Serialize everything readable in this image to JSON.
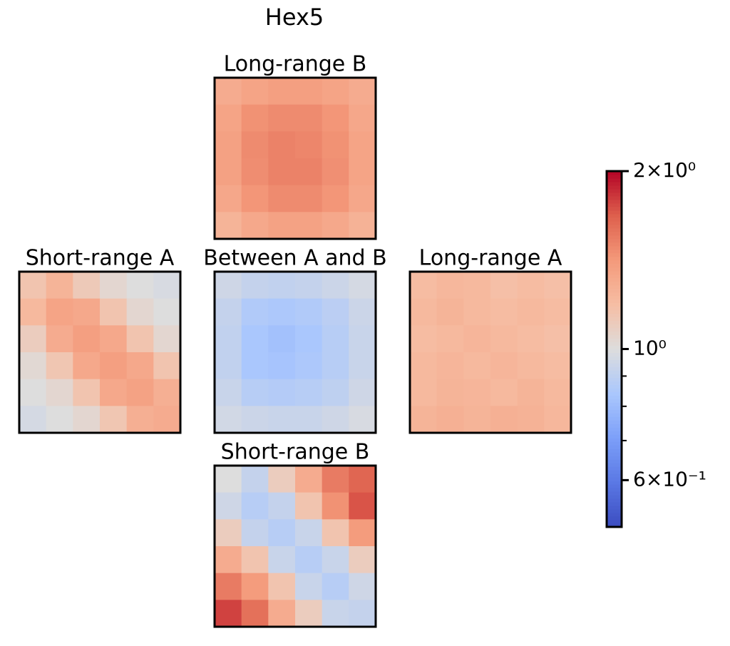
{
  "chart_data": {
    "type": "heatmap",
    "title": "Hex5",
    "colormap": "coolwarm",
    "log_scale": true,
    "clim": [
      0.5,
      2
    ],
    "cticks": [
      {
        "value": 2,
        "label": "2×10⁰"
      },
      {
        "value": 1,
        "label": "10⁰"
      },
      {
        "value": 0.6,
        "label": "6×10⁻¹"
      }
    ],
    "cminor_ticks": [
      0.9,
      0.8,
      0.7
    ],
    "panels": [
      {
        "title": "Long-range B",
        "values": [
          [
            1.3,
            1.35,
            1.38,
            1.38,
            1.35,
            1.3
          ],
          [
            1.35,
            1.45,
            1.48,
            1.48,
            1.43,
            1.33
          ],
          [
            1.37,
            1.48,
            1.52,
            1.5,
            1.45,
            1.35
          ],
          [
            1.37,
            1.47,
            1.52,
            1.52,
            1.46,
            1.35
          ],
          [
            1.33,
            1.43,
            1.48,
            1.48,
            1.43,
            1.33
          ],
          [
            1.25,
            1.32,
            1.36,
            1.36,
            1.32,
            1.26
          ]
        ]
      },
      {
        "title": "Short-range A",
        "values": [
          [
            1.15,
            1.25,
            1.12,
            1.04,
            1.0,
            0.98
          ],
          [
            1.22,
            1.35,
            1.32,
            1.15,
            1.04,
            1.0
          ],
          [
            1.1,
            1.3,
            1.38,
            1.32,
            1.15,
            1.04
          ],
          [
            1.03,
            1.14,
            1.32,
            1.38,
            1.32,
            1.15
          ],
          [
            1.0,
            1.04,
            1.15,
            1.32,
            1.36,
            1.28
          ],
          [
            0.97,
            1.0,
            1.04,
            1.14,
            1.28,
            1.3
          ]
        ]
      },
      {
        "title": "Between A and B",
        "values": [
          [
            0.95,
            0.92,
            0.91,
            0.92,
            0.94,
            0.97
          ],
          [
            0.92,
            0.86,
            0.85,
            0.86,
            0.89,
            0.94
          ],
          [
            0.91,
            0.84,
            0.82,
            0.84,
            0.88,
            0.93
          ],
          [
            0.91,
            0.84,
            0.83,
            0.85,
            0.88,
            0.93
          ],
          [
            0.93,
            0.88,
            0.87,
            0.88,
            0.9,
            0.95
          ],
          [
            0.96,
            0.94,
            0.93,
            0.93,
            0.95,
            0.98
          ]
        ]
      },
      {
        "title": "Long-range A",
        "values": [
          [
            1.2,
            1.23,
            1.22,
            1.18,
            1.2,
            1.18
          ],
          [
            1.22,
            1.25,
            1.22,
            1.2,
            1.22,
            1.2
          ],
          [
            1.2,
            1.22,
            1.24,
            1.22,
            1.2,
            1.18
          ],
          [
            1.22,
            1.24,
            1.22,
            1.24,
            1.22,
            1.2
          ],
          [
            1.22,
            1.25,
            1.24,
            1.22,
            1.25,
            1.22
          ],
          [
            1.25,
            1.27,
            1.25,
            1.27,
            1.26,
            1.23
          ]
        ]
      },
      {
        "title": "Short-range B",
        "values": [
          [
            1.0,
            0.92,
            1.1,
            1.3,
            1.55,
            1.65
          ],
          [
            0.95,
            0.88,
            0.92,
            1.15,
            1.45,
            1.72
          ],
          [
            1.1,
            0.92,
            0.88,
            0.93,
            1.15,
            1.4
          ],
          [
            1.3,
            1.15,
            0.93,
            0.88,
            0.93,
            1.1
          ],
          [
            1.55,
            1.4,
            1.15,
            0.93,
            0.88,
            0.95
          ],
          [
            1.78,
            1.6,
            1.3,
            1.1,
            0.93,
            0.92
          ]
        ]
      }
    ]
  }
}
